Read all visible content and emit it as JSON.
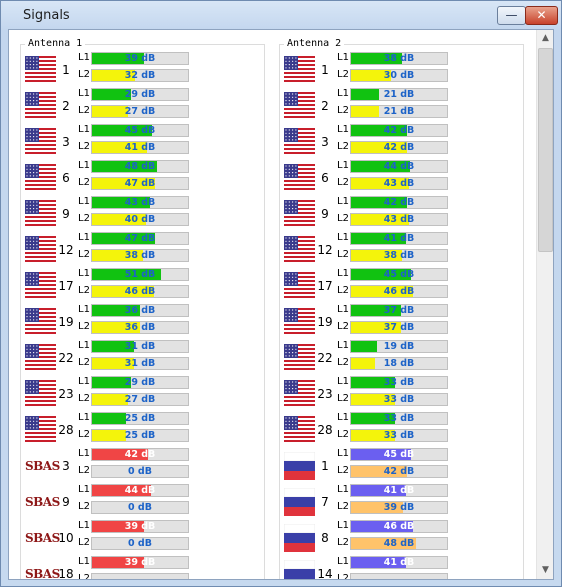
{
  "window": {
    "title": "Signals",
    "minimize_glyph": "—",
    "close_glyph": "✕"
  },
  "scrollbar": {
    "up_glyph": "▲",
    "down_glyph": "▼"
  },
  "colors": {
    "gps_l1": "#11c211",
    "gps_l2": "#f4f40b",
    "sbas_l1": "#f04545",
    "glonass_l1": "#6b5ff0",
    "glonass_l2": "#ffc36a"
  },
  "antenna1": {
    "title": "Antenna 1",
    "sats": [
      {
        "type": "gps",
        "id": "1",
        "l1": {
          "label": "L1",
          "text": "39 dB",
          "pct": 0.39
        },
        "l2": {
          "label": "L2",
          "text": "32 dB",
          "pct": 0.32
        }
      },
      {
        "type": "gps",
        "id": "2",
        "l1": {
          "label": "L1",
          "text": "29 dB",
          "pct": 0.29
        },
        "l2": {
          "label": "L2",
          "text": "27 dB",
          "pct": 0.27
        }
      },
      {
        "type": "gps",
        "id": "3",
        "l1": {
          "label": "L1",
          "text": "45 dB",
          "pct": 0.45
        },
        "l2": {
          "label": "L2",
          "text": "41 dB",
          "pct": 0.41
        }
      },
      {
        "type": "gps",
        "id": "6",
        "l1": {
          "label": "L1",
          "text": "48 dB",
          "pct": 0.48
        },
        "l2": {
          "label": "L2",
          "text": "47 dB",
          "pct": 0.47
        }
      },
      {
        "type": "gps",
        "id": "9",
        "l1": {
          "label": "L1",
          "text": "43 dB",
          "pct": 0.43
        },
        "l2": {
          "label": "L2",
          "text": "40 dB",
          "pct": 0.4
        }
      },
      {
        "type": "gps",
        "id": "12",
        "l1": {
          "label": "L1",
          "text": "47 dB",
          "pct": 0.47
        },
        "l2": {
          "label": "L2",
          "text": "38 dB",
          "pct": 0.38
        }
      },
      {
        "type": "gps",
        "id": "17",
        "l1": {
          "label": "L1",
          "text": "51 dB",
          "pct": 0.51
        },
        "l2": {
          "label": "L2",
          "text": "46 dB",
          "pct": 0.46
        }
      },
      {
        "type": "gps",
        "id": "19",
        "l1": {
          "label": "L1",
          "text": "36 dB",
          "pct": 0.36
        },
        "l2": {
          "label": "L2",
          "text": "36 dB",
          "pct": 0.36
        }
      },
      {
        "type": "gps",
        "id": "22",
        "l1": {
          "label": "L1",
          "text": "31 dB",
          "pct": 0.31
        },
        "l2": {
          "label": "L2",
          "text": "31 dB",
          "pct": 0.31
        }
      },
      {
        "type": "gps",
        "id": "23",
        "l1": {
          "label": "L1",
          "text": "29 dB",
          "pct": 0.29
        },
        "l2": {
          "label": "L2",
          "text": "27 dB",
          "pct": 0.27
        }
      },
      {
        "type": "gps",
        "id": "28",
        "l1": {
          "label": "L1",
          "text": "25 dB",
          "pct": 0.25
        },
        "l2": {
          "label": "L2",
          "text": "25 dB",
          "pct": 0.25
        }
      },
      {
        "type": "sbas",
        "id": "3",
        "logo": "SBAS",
        "l1": {
          "label": "L1",
          "text": "42 dB",
          "pct": 0.42
        },
        "l2": {
          "label": "L2",
          "text": "0 dB",
          "pct": 0.0
        }
      },
      {
        "type": "sbas",
        "id": "9",
        "logo": "SBAS",
        "l1": {
          "label": "L1",
          "text": "44 dB",
          "pct": 0.44
        },
        "l2": {
          "label": "L2",
          "text": "0 dB",
          "pct": 0.0
        }
      },
      {
        "type": "sbas",
        "id": "10",
        "logo": "SBAS",
        "l1": {
          "label": "L1",
          "text": "39 dB",
          "pct": 0.39
        },
        "l2": {
          "label": "L2",
          "text": "0 dB",
          "pct": 0.0
        }
      },
      {
        "type": "sbas",
        "id": "18",
        "logo": "SBAS",
        "l1": {
          "label": "L1",
          "text": "39 dB",
          "pct": 0.39
        },
        "l2": {
          "label": "L2",
          "text": "",
          "pct": 0.0
        }
      }
    ]
  },
  "antenna2": {
    "title": "Antenna 2",
    "sats": [
      {
        "type": "gps",
        "id": "1",
        "l1": {
          "label": "L1",
          "text": "38 dB",
          "pct": 0.38
        },
        "l2": {
          "label": "L2",
          "text": "30 dB",
          "pct": 0.3
        }
      },
      {
        "type": "gps",
        "id": "2",
        "l1": {
          "label": "L1",
          "text": "21 dB",
          "pct": 0.21
        },
        "l2": {
          "label": "L2",
          "text": "21 dB",
          "pct": 0.21
        }
      },
      {
        "type": "gps",
        "id": "3",
        "l1": {
          "label": "L1",
          "text": "42 dB",
          "pct": 0.42
        },
        "l2": {
          "label": "L2",
          "text": "42 dB",
          "pct": 0.42
        }
      },
      {
        "type": "gps",
        "id": "6",
        "l1": {
          "label": "L1",
          "text": "44 dB",
          "pct": 0.44
        },
        "l2": {
          "label": "L2",
          "text": "43 dB",
          "pct": 0.43
        }
      },
      {
        "type": "gps",
        "id": "9",
        "l1": {
          "label": "L1",
          "text": "42 dB",
          "pct": 0.42
        },
        "l2": {
          "label": "L2",
          "text": "43 dB",
          "pct": 0.43
        }
      },
      {
        "type": "gps",
        "id": "12",
        "l1": {
          "label": "L1",
          "text": "41 dB",
          "pct": 0.41
        },
        "l2": {
          "label": "L2",
          "text": "38 dB",
          "pct": 0.38
        }
      },
      {
        "type": "gps",
        "id": "17",
        "l1": {
          "label": "L1",
          "text": "45 dB",
          "pct": 0.45
        },
        "l2": {
          "label": "L2",
          "text": "46 dB",
          "pct": 0.46
        }
      },
      {
        "type": "gps",
        "id": "19",
        "l1": {
          "label": "L1",
          "text": "37 dB",
          "pct": 0.37
        },
        "l2": {
          "label": "L2",
          "text": "37 dB",
          "pct": 0.37
        }
      },
      {
        "type": "gps",
        "id": "22",
        "l1": {
          "label": "L1",
          "text": "19 dB",
          "pct": 0.19
        },
        "l2": {
          "label": "L2",
          "text": "18 dB",
          "pct": 0.18
        }
      },
      {
        "type": "gps",
        "id": "23",
        "l1": {
          "label": "L1",
          "text": "33 dB",
          "pct": 0.33
        },
        "l2": {
          "label": "L2",
          "text": "33 dB",
          "pct": 0.33
        }
      },
      {
        "type": "gps",
        "id": "28",
        "l1": {
          "label": "L1",
          "text": "33 dB",
          "pct": 0.33
        },
        "l2": {
          "label": "L2",
          "text": "33 dB",
          "pct": 0.33
        }
      },
      {
        "type": "glonass",
        "id": "1",
        "l1": {
          "label": "L1",
          "text": "45 dB",
          "pct": 0.45
        },
        "l2": {
          "label": "L2",
          "text": "42 dB",
          "pct": 0.42
        }
      },
      {
        "type": "glonass",
        "id": "7",
        "l1": {
          "label": "L1",
          "text": "41 dB",
          "pct": 0.41
        },
        "l2": {
          "label": "L2",
          "text": "39 dB",
          "pct": 0.39
        }
      },
      {
        "type": "glonass",
        "id": "8",
        "l1": {
          "label": "L1",
          "text": "46 dB",
          "pct": 0.46
        },
        "l2": {
          "label": "L2",
          "text": "48 dB",
          "pct": 0.48
        }
      },
      {
        "type": "glonass",
        "id": "14",
        "l1": {
          "label": "L1",
          "text": "41 dB",
          "pct": 0.41
        },
        "l2": {
          "label": "L2",
          "text": "",
          "pct": 0.0
        }
      }
    ]
  }
}
